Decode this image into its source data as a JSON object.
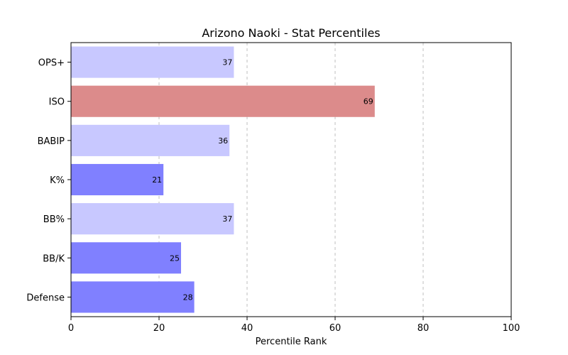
{
  "chart_data": {
    "type": "bar",
    "orientation": "horizontal",
    "title": "Arizono Naoki - Stat Percentiles",
    "xlabel": "Percentile Rank",
    "ylabel": "",
    "xlim": [
      0,
      100
    ],
    "xticks": [
      "0",
      "20",
      "40",
      "60",
      "80",
      "100"
    ],
    "grid": "x-dashed",
    "categories": [
      "OPS+",
      "ISO",
      "BABIP",
      "K%",
      "BB%",
      "BB/K",
      "Defense"
    ],
    "values": [
      37,
      69,
      36,
      21,
      37,
      25,
      28
    ],
    "value_labels": [
      "37",
      "69",
      "36",
      "21",
      "37",
      "25",
      "28"
    ],
    "colors": [
      "#c8c8ff",
      "#dc8b8b",
      "#c8c8ff",
      "#8080ff",
      "#c8c8ff",
      "#8080ff",
      "#8080ff"
    ]
  }
}
